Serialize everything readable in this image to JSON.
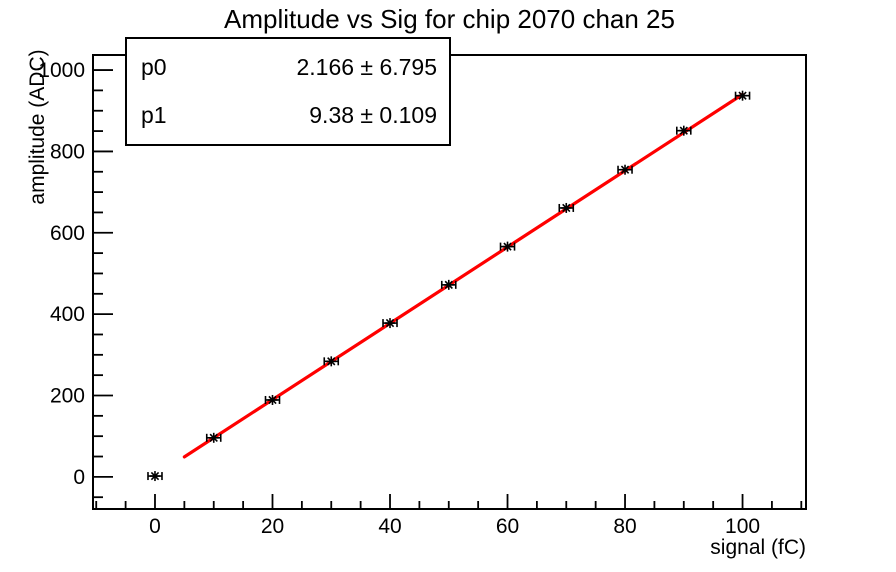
{
  "title": "Amplitude vs Sig for chip 2070 chan 25",
  "stats_box": {
    "rows": [
      {
        "label": "p0",
        "value": "2.166 ± 6.795"
      },
      {
        "label": "p1",
        "value": "9.38 ± 0.109"
      }
    ]
  },
  "chart_data": {
    "type": "scatter",
    "title": "Amplitude vs Sig for chip 2070 chan 25",
    "xlabel": "signal (fC)",
    "ylabel": "amplitude (ADC)",
    "x": [
      0,
      10,
      20,
      30,
      40,
      50,
      60,
      70,
      80,
      90,
      100
    ],
    "y": [
      2,
      96,
      189,
      284,
      378,
      472,
      566,
      661,
      755,
      851,
      937
    ],
    "x_err": 1.2,
    "marker": "asterisk",
    "marker_color": "#000000",
    "fit_line": {
      "p0": 2.166,
      "p0_err": 6.795,
      "p1": 9.38,
      "p1_err": 0.109,
      "x_start": 5,
      "x_end": 100,
      "color": "#ff0000"
    },
    "xlim": [
      -10.55,
      110.8
    ],
    "ylim": [
      -79,
      1037
    ],
    "x_ticks_major": [
      0,
      20,
      40,
      60,
      80,
      100
    ],
    "x_minor_step": 5,
    "y_ticks_major": [
      0,
      200,
      400,
      600,
      800,
      1000
    ],
    "y_minor_step": 50,
    "grid": false,
    "axis_color": "#000000",
    "background": "#ffffff",
    "legend_position": "stats box top-left"
  }
}
